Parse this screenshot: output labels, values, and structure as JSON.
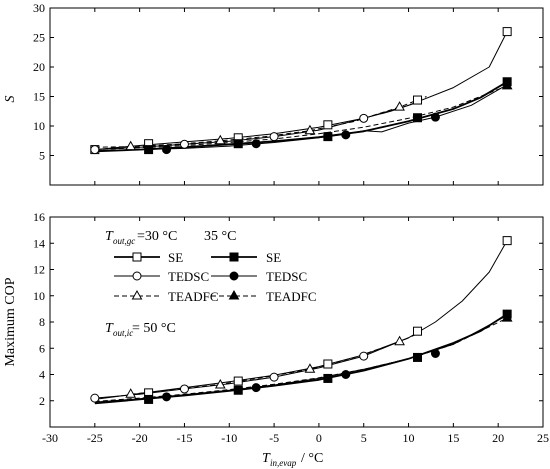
{
  "chart_data": [
    {
      "type": "line",
      "panel": "top",
      "ylabel": "S",
      "ylim": [
        0,
        30
      ],
      "yticks": [
        5,
        10,
        15,
        20,
        25,
        30
      ],
      "xlim": [
        -30,
        25
      ],
      "grid": false,
      "series": [
        {
          "name": "SE",
          "group": "30",
          "marker": "square-open",
          "dash": false,
          "thick": false,
          "x": [
            -25,
            -19,
            -9,
            1,
            11,
            21
          ],
          "y": [
            6.0,
            7.0,
            8.0,
            10.2,
            14.4,
            26.0
          ],
          "curve": [
            [
              -25,
              6.0
            ],
            [
              -20,
              6.7
            ],
            [
              -15,
              7.3
            ],
            [
              -10,
              7.9
            ],
            [
              -5,
              8.7
            ],
            [
              0,
              9.8
            ],
            [
              5,
              11.3
            ],
            [
              10,
              13.5
            ],
            [
              15,
              16.5
            ],
            [
              19,
              20.0
            ],
            [
              21,
              26.0
            ]
          ]
        },
        {
          "name": "TEDSC",
          "group": "30",
          "marker": "circle-open",
          "dash": false,
          "thick": false,
          "x": [
            -25,
            -15,
            -5,
            5
          ],
          "y": [
            6.0,
            6.9,
            8.2,
            11.3
          ],
          "curve": [
            [
              -25,
              6.0
            ],
            [
              -20,
              6.4
            ],
            [
              -15,
              6.9
            ],
            [
              -10,
              7.4
            ],
            [
              -5,
              8.2
            ],
            [
              0,
              9.3
            ],
            [
              5,
              11.3
            ],
            [
              8,
              12.5
            ],
            [
              11,
              14.0
            ]
          ]
        },
        {
          "name": "TEADFC",
          "group": "30",
          "marker": "triangle-open",
          "dash": true,
          "thick": false,
          "x": [
            -21,
            -11,
            -1,
            9
          ],
          "y": [
            6.5,
            7.5,
            9.2,
            13.2
          ],
          "curve": [
            [
              -25,
              6.4
            ],
            [
              -21,
              6.5
            ],
            [
              -16,
              6.9
            ],
            [
              -11,
              7.5
            ],
            [
              -6,
              8.2
            ],
            [
              -1,
              9.2
            ],
            [
              4,
              10.8
            ],
            [
              9,
              13.2
            ],
            [
              12,
              15.0
            ]
          ]
        },
        {
          "name": "SE",
          "group": "35",
          "marker": "square-filled",
          "dash": false,
          "thick": true,
          "x": [
            -19,
            -9,
            1,
            11,
            21
          ],
          "y": [
            6.0,
            7.0,
            8.2,
            11.4,
            17.5
          ],
          "curve": [
            [
              -25,
              5.7
            ],
            [
              -20,
              6.0
            ],
            [
              -15,
              6.4
            ],
            [
              -10,
              6.9
            ],
            [
              -5,
              7.4
            ],
            [
              0,
              8.1
            ],
            [
              5,
              9.1
            ],
            [
              10,
              10.8
            ],
            [
              15,
              12.9
            ],
            [
              18,
              14.8
            ],
            [
              21,
              17.5
            ]
          ]
        },
        {
          "name": "TEDSC",
          "group": "35",
          "marker": "circle-filled",
          "dash": false,
          "thick": false,
          "x": [
            -17,
            -7,
            3,
            13
          ],
          "y": [
            6.0,
            7.0,
            8.5,
            11.5
          ],
          "curve": [
            [
              -25,
              5.8
            ],
            [
              -20,
              6.0
            ],
            [
              -15,
              6.2
            ],
            [
              -10,
              6.6
            ],
            [
              -5,
              7.2
            ],
            [
              0,
              8.0
            ],
            [
              3,
              8.6
            ],
            [
              5,
              9.2
            ],
            [
              7,
              9.0
            ],
            [
              10,
              10.5
            ],
            [
              13,
              11.5
            ],
            [
              17,
              13.5
            ],
            [
              21,
              17.0
            ]
          ]
        },
        {
          "name": "TEADFC",
          "group": "35",
          "marker": "triangle-filled",
          "dash": true,
          "thick": false,
          "x": [
            21
          ],
          "y": [
            16.8
          ],
          "curve": [
            [
              -25,
              6.0
            ],
            [
              -20,
              6.3
            ],
            [
              -15,
              6.7
            ],
            [
              -10,
              7.2
            ],
            [
              -5,
              7.8
            ],
            [
              0,
              8.7
            ],
            [
              5,
              9.8
            ],
            [
              10,
              11.3
            ],
            [
              15,
              13.2
            ],
            [
              21,
              16.8
            ]
          ]
        }
      ]
    },
    {
      "type": "line",
      "panel": "bottom",
      "ylabel": "Maximum COP",
      "xlabel": "T in,evap / °C",
      "ylim": [
        0,
        16
      ],
      "yticks": [
        2,
        4,
        6,
        8,
        10,
        12,
        14,
        16
      ],
      "xlim": [
        -30,
        25
      ],
      "xticks": [
        -30,
        -25,
        -20,
        -15,
        -10,
        -5,
        0,
        5,
        10,
        15,
        20,
        25
      ],
      "grid": false,
      "series": [
        {
          "name": "SE",
          "group": "30",
          "marker": "square-open",
          "dash": false,
          "thick": false,
          "x": [
            -19,
            -9,
            1,
            11,
            21
          ],
          "y": [
            2.6,
            3.5,
            4.8,
            7.3,
            14.2
          ],
          "curve": [
            [
              -25,
              2.1
            ],
            [
              -20,
              2.55
            ],
            [
              -15,
              3.0
            ],
            [
              -10,
              3.45
            ],
            [
              -5,
              3.95
            ],
            [
              0,
              4.6
            ],
            [
              5,
              5.5
            ],
            [
              10,
              6.8
            ],
            [
              13,
              8.0
            ],
            [
              16,
              9.6
            ],
            [
              19,
              11.8
            ],
            [
              21,
              14.2
            ]
          ]
        },
        {
          "name": "TEDSC",
          "group": "30",
          "marker": "circle-open",
          "dash": false,
          "thick": false,
          "x": [
            -25,
            -15,
            -5,
            5
          ],
          "y": [
            2.2,
            2.9,
            3.8,
            5.4
          ],
          "curve": [
            [
              -25,
              2.2
            ],
            [
              -20,
              2.5
            ],
            [
              -15,
              2.9
            ],
            [
              -10,
              3.3
            ],
            [
              -5,
              3.8
            ],
            [
              0,
              4.5
            ],
            [
              5,
              5.4
            ],
            [
              10,
              6.8
            ]
          ]
        },
        {
          "name": "TEADFC",
          "group": "30",
          "marker": "triangle-open",
          "dash": true,
          "thick": false,
          "x": [
            -21,
            -11,
            -1,
            9
          ],
          "y": [
            2.5,
            3.2,
            4.4,
            6.5
          ],
          "curve": [
            [
              -21,
              2.5
            ],
            [
              -16,
              2.85
            ],
            [
              -11,
              3.25
            ],
            [
              -6,
              3.8
            ],
            [
              -1,
              4.4
            ],
            [
              4,
              5.3
            ],
            [
              9,
              6.5
            ],
            [
              11,
              7.1
            ]
          ]
        },
        {
          "name": "SE",
          "group": "35",
          "marker": "square-filled",
          "dash": false,
          "thick": true,
          "x": [
            -19,
            -9,
            1,
            11,
            21
          ],
          "y": [
            2.1,
            2.8,
            3.7,
            5.3,
            8.6
          ],
          "curve": [
            [
              -25,
              1.8
            ],
            [
              -20,
              2.1
            ],
            [
              -15,
              2.4
            ],
            [
              -10,
              2.75
            ],
            [
              -5,
              3.15
            ],
            [
              0,
              3.6
            ],
            [
              5,
              4.3
            ],
            [
              10,
              5.2
            ],
            [
              15,
              6.4
            ],
            [
              18,
              7.3
            ],
            [
              21,
              8.6
            ]
          ]
        },
        {
          "name": "TEDSC",
          "group": "35",
          "marker": "circle-filled",
          "dash": false,
          "thick": false,
          "x": [
            -17,
            -7,
            3,
            13
          ],
          "y": [
            2.3,
            3.0,
            4.0,
            5.6
          ],
          "curve": [
            [
              -25,
              1.9
            ],
            [
              -20,
              2.15
            ],
            [
              -15,
              2.45
            ],
            [
              -10,
              2.8
            ],
            [
              -5,
              3.2
            ],
            [
              0,
              3.7
            ],
            [
              5,
              4.4
            ],
            [
              10,
              5.2
            ],
            [
              15,
              6.3
            ],
            [
              21,
              8.5
            ]
          ]
        },
        {
          "name": "TEADFC",
          "group": "35",
          "marker": "triangle-filled",
          "dash": true,
          "thick": false,
          "x": [
            21
          ],
          "y": [
            8.3
          ],
          "curve": [
            [
              -25,
              1.95
            ],
            [
              -20,
              2.2
            ],
            [
              -15,
              2.5
            ],
            [
              -10,
              2.85
            ],
            [
              -5,
              3.25
            ],
            [
              0,
              3.75
            ],
            [
              5,
              4.4
            ],
            [
              10,
              5.2
            ],
            [
              15,
              6.3
            ],
            [
              21,
              8.3
            ]
          ]
        }
      ]
    }
  ],
  "legend": {
    "header_prefix": "T",
    "header_sub": "out,gc",
    "header_eq": "=30 °C",
    "header_35": "35 °C",
    "labels_30": [
      "SE",
      "TEDSC",
      "TEADFC"
    ],
    "labels_35": [
      "SE",
      "TEDSC",
      "TEADFC"
    ],
    "note_prefix": "T",
    "note_sub": "out,ic",
    "note_eq": " = 50 °C"
  },
  "xaxis_title": {
    "main": "T",
    "sub": "in,evap",
    "rest": " / °C"
  }
}
